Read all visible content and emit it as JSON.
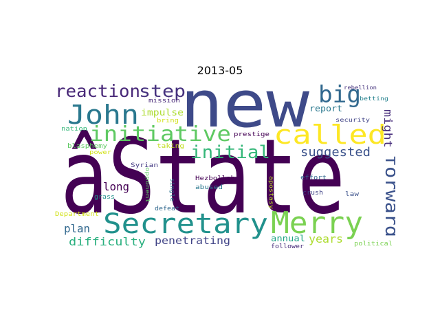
{
  "title": "2013-05",
  "words": [
    {
      "text": "âState",
      "color": "#440154"
    },
    {
      "text": "new",
      "color": "#3e4a89"
    },
    {
      "text": "Secretary",
      "color": "#21918c"
    },
    {
      "text": "Merry",
      "color": "#7ad151"
    },
    {
      "text": "John",
      "color": "#2a788e"
    },
    {
      "text": "called",
      "color": "#fde725"
    },
    {
      "text": "initiative",
      "color": "#5ec962"
    },
    {
      "text": "reaction",
      "color": "#482878"
    },
    {
      "text": "step",
      "color": "#46327e"
    },
    {
      "text": "big",
      "color": "#31688e"
    },
    {
      "text": "initial",
      "color": "#35b779"
    },
    {
      "text": "forward",
      "color": "#3b528b"
    },
    {
      "text": "suggested",
      "color": "#3b528b"
    },
    {
      "text": "might",
      "color": "#472d7b"
    },
    {
      "text": "long",
      "color": "#440154"
    },
    {
      "text": "plan",
      "color": "#31688e"
    },
    {
      "text": "difficulty",
      "color": "#2ab07f"
    },
    {
      "text": "penetrating",
      "color": "#414487"
    },
    {
      "text": "years",
      "color": "#addc30"
    },
    {
      "text": "impulse",
      "color": "#addc30"
    },
    {
      "text": "report",
      "color": "#2a788e"
    },
    {
      "text": "annual",
      "color": "#20a486"
    },
    {
      "text": "mission",
      "color": "#482878"
    },
    {
      "text": "bring",
      "color": "#d2e21b"
    },
    {
      "text": "nation",
      "color": "#35b779"
    },
    {
      "text": "blasphemy",
      "color": "#5ec962"
    },
    {
      "text": "power",
      "color": "#d2e21b"
    },
    {
      "text": "taking",
      "color": "#c2df23"
    },
    {
      "text": "prestige",
      "color": "#440154"
    },
    {
      "text": "Syrian",
      "color": "#443a83"
    },
    {
      "text": "opponent",
      "color": "#5ec962"
    },
    {
      "text": "single",
      "color": "#2c728e"
    },
    {
      "text": "Hezbollah",
      "color": "#440154"
    },
    {
      "text": "abused",
      "color": "#2a788e"
    },
    {
      "text": "apostasy",
      "color": "#bddf26"
    },
    {
      "text": "effort",
      "color": "#31688e"
    },
    {
      "text": "crush",
      "color": "#414487"
    },
    {
      "text": "law",
      "color": "#3b528b"
    },
    {
      "text": "grass",
      "color": "#21918c"
    },
    {
      "text": "defeat",
      "color": "#31688e"
    },
    {
      "text": "Department",
      "color": "#d2e21b"
    },
    {
      "text": "follower",
      "color": "#472d7b"
    },
    {
      "text": "political",
      "color": "#7ad151"
    },
    {
      "text": "rebellion",
      "color": "#46337e"
    },
    {
      "text": "betting",
      "color": "#26828e"
    },
    {
      "text": "security",
      "color": "#414487"
    }
  ]
}
